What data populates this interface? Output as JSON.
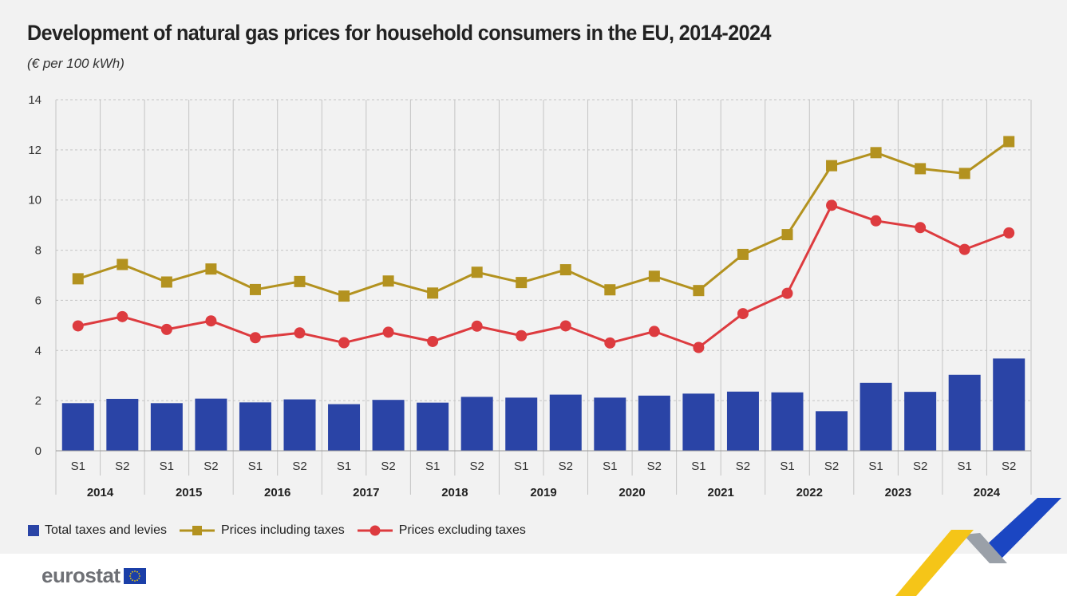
{
  "title": "Development of natural gas prices for household consumers in the EU, 2014-2024",
  "subtitle": "(€ per 100 kWh)",
  "legend": {
    "bars": "Total taxes and levies",
    "incl": "Prices including taxes",
    "excl": "Prices excluding taxes"
  },
  "footer": {
    "logo_text": "eurostat"
  },
  "colors": {
    "bars": "#2a44a6",
    "incl": "#b3921f",
    "excl": "#dd3b3f",
    "grid": "#c4c4c4",
    "background": "#f2f2f2",
    "accent_yellow": "#f5c518",
    "accent_blue": "#1b46c2",
    "accent_grey": "#9aa0a8"
  },
  "chart_data": {
    "type": "bar",
    "categories": [
      "S1",
      "S2",
      "S1",
      "S2",
      "S1",
      "S2",
      "S1",
      "S2",
      "S1",
      "S2",
      "S1",
      "S2",
      "S1",
      "S2",
      "S1",
      "S2",
      "S1",
      "S2",
      "S1",
      "S2",
      "S1",
      "S2"
    ],
    "years": [
      "2014",
      "2015",
      "2016",
      "2017",
      "2018",
      "2019",
      "2020",
      "2021",
      "2022",
      "2023",
      "2024"
    ],
    "ylim": [
      0,
      14
    ],
    "yticks": [
      0,
      2,
      4,
      6,
      8,
      10,
      12,
      14
    ],
    "grid": true,
    "legend_position": "bottom",
    "series": [
      {
        "name": "Total taxes and levies",
        "type": "bar",
        "values": [
          1.9,
          2.07,
          1.9,
          2.08,
          1.93,
          2.05,
          1.86,
          2.03,
          1.92,
          2.15,
          2.12,
          2.24,
          2.12,
          2.2,
          2.28,
          2.36,
          2.33,
          1.58,
          2.71,
          2.35,
          3.03,
          3.68
        ]
      },
      {
        "name": "Prices including taxes",
        "type": "line",
        "marker": "square",
        "values": [
          6.86,
          7.43,
          6.73,
          7.25,
          6.43,
          6.75,
          6.17,
          6.77,
          6.29,
          7.12,
          6.71,
          7.22,
          6.42,
          6.96,
          6.39,
          7.83,
          8.62,
          11.37,
          11.89,
          11.25,
          11.06,
          12.33
        ]
      },
      {
        "name": "Prices excluding taxes",
        "type": "line",
        "marker": "circle",
        "values": [
          4.98,
          5.35,
          4.84,
          5.18,
          4.51,
          4.7,
          4.31,
          4.73,
          4.36,
          4.97,
          4.59,
          4.98,
          4.3,
          4.76,
          4.12,
          5.47,
          6.28,
          9.79,
          9.17,
          8.9,
          8.03,
          8.69
        ]
      }
    ]
  }
}
